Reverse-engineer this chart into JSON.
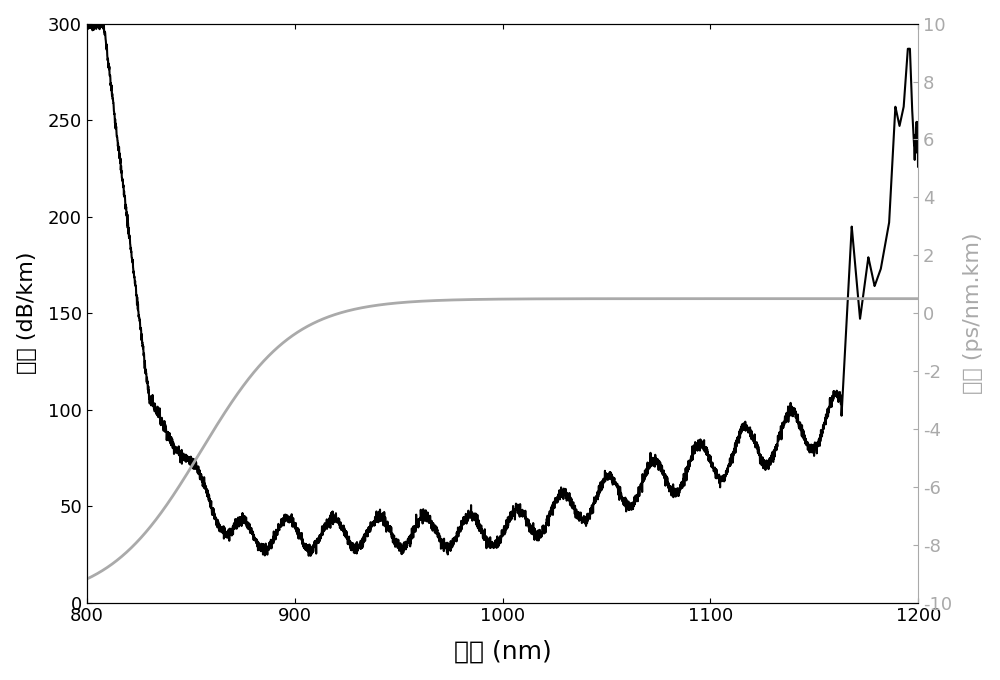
{
  "x_min": 800,
  "x_max": 1200,
  "y1_min": 0,
  "y1_max": 300,
  "y2_min": -10,
  "y2_max": 10,
  "xlabel": "波长 (nm)",
  "ylabel_left": "损耗 (dB/km)",
  "ylabel_right": "色散 (ps/nm.km)",
  "left_yticks": [
    0,
    50,
    100,
    150,
    200,
    250,
    300
  ],
  "right_yticks": [
    -10,
    -8,
    -6,
    -4,
    -2,
    0,
    2,
    4,
    6,
    8,
    10
  ],
  "xticks": [
    800,
    900,
    1000,
    1100,
    1200
  ],
  "background_color": "#ffffff",
  "loss_color": "#000000",
  "dispersion_color": "#aaaaaa",
  "loss_linewidth": 1.5,
  "dispersion_linewidth": 2.0
}
